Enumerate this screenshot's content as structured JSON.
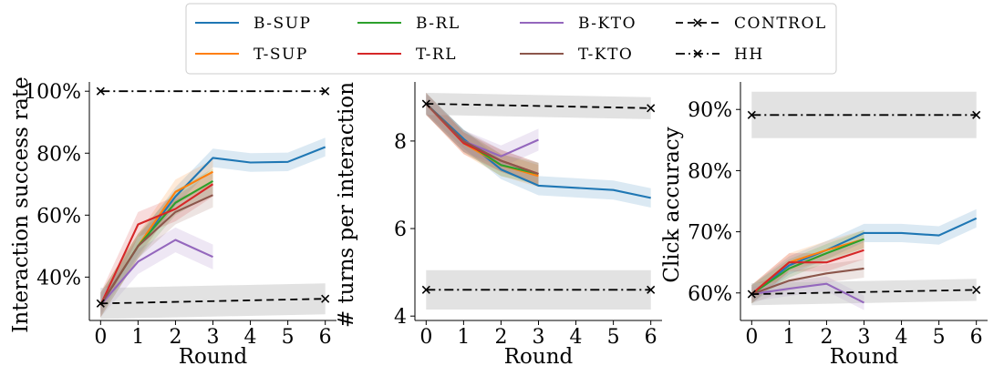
{
  "legend": {
    "placement": "top-center",
    "entries": [
      {
        "label": "B-SUP",
        "color": "#1f77b4",
        "style": "solid"
      },
      {
        "label": "T-SUP",
        "color": "#ff7f0e",
        "style": "solid"
      },
      {
        "label": "B-RL",
        "color": "#2ca02c",
        "style": "solid"
      },
      {
        "label": "T-RL",
        "color": "#d62728",
        "style": "solid"
      },
      {
        "label": "B-KTO",
        "color": "#9467bd",
        "style": "solid"
      },
      {
        "label": "T-KTO",
        "color": "#8c564b",
        "style": "solid"
      },
      {
        "label": "CONTROL",
        "color": "#000000",
        "style": "dashed",
        "marker": "x"
      },
      {
        "label": "HH",
        "color": "#000000",
        "style": "dashdot",
        "marker": "x"
      }
    ]
  },
  "chart_data": [
    {
      "type": "line",
      "xlabel": "Round",
      "ylabel": "Interaction success rate",
      "xlim": [
        -0.3,
        6.3
      ],
      "ylim": [
        26,
        103
      ],
      "xticks": [
        "0",
        "1",
        "2",
        "3",
        "4",
        "5",
        "6"
      ],
      "yticks": [
        {
          "value": 40,
          "label": "40%"
        },
        {
          "value": 60,
          "label": "60%"
        },
        {
          "value": 80,
          "label": "80%"
        },
        {
          "value": 100,
          "label": "100%"
        }
      ],
      "grid": false,
      "series": [
        {
          "name": "B-SUP",
          "color": "#1f77b4",
          "x": [
            0,
            1,
            2,
            3,
            4,
            5,
            6
          ],
          "y": [
            31,
            50,
            66,
            78.5,
            77,
            77.2,
            82
          ],
          "band": 3
        },
        {
          "name": "T-SUP",
          "color": "#ff7f0e",
          "x": [
            0,
            1,
            2,
            3
          ],
          "y": [
            31,
            50,
            67.5,
            74
          ],
          "band": 4
        },
        {
          "name": "B-RL",
          "color": "#2ca02c",
          "x": [
            0,
            1,
            2,
            3
          ],
          "y": [
            31,
            50,
            64,
            71
          ],
          "band": 4
        },
        {
          "name": "T-RL",
          "color": "#d62728",
          "x": [
            0,
            1,
            2,
            3
          ],
          "y": [
            31,
            57,
            62,
            70
          ],
          "band": 4
        },
        {
          "name": "B-KTO",
          "color": "#9467bd",
          "x": [
            0,
            1,
            2,
            3
          ],
          "y": [
            31,
            45,
            52,
            46.5
          ],
          "band": 4
        },
        {
          "name": "T-KTO",
          "color": "#8c564b",
          "x": [
            0,
            1,
            2,
            3
          ],
          "y": [
            31,
            50,
            61,
            66.5
          ],
          "band": 4
        },
        {
          "name": "CONTROL",
          "color": "#000000",
          "dash": "dashed",
          "x": [
            0,
            6
          ],
          "y": [
            31.5,
            33
          ],
          "band": 5,
          "band_color": "#bbbbbb"
        },
        {
          "name": "HH",
          "color": "#000000",
          "dash": "dashdot",
          "x": [
            0,
            6
          ],
          "y": [
            100,
            100
          ],
          "band": 0
        }
      ]
    },
    {
      "type": "line",
      "xlabel": "Round",
      "ylabel": "# turns per interaction",
      "xlim": [
        -0.3,
        6.3
      ],
      "ylim": [
        3.9,
        9.35
      ],
      "xticks": [
        "0",
        "1",
        "2",
        "3",
        "4",
        "5",
        "6"
      ],
      "yticks": [
        {
          "value": 4,
          "label": "4"
        },
        {
          "value": 6,
          "label": "6"
        },
        {
          "value": 8,
          "label": "8"
        }
      ],
      "grid": false,
      "series": [
        {
          "name": "B-SUP",
          "color": "#1f77b4",
          "x": [
            0,
            1,
            2,
            3,
            4,
            5,
            6
          ],
          "y": [
            8.85,
            8.05,
            7.35,
            6.98,
            6.93,
            6.88,
            6.7
          ],
          "band": 0.22
        },
        {
          "name": "T-SUP",
          "color": "#ff7f0e",
          "x": [
            0,
            1,
            2,
            3
          ],
          "y": [
            8.85,
            7.95,
            7.45,
            7.2
          ],
          "band": 0.25
        },
        {
          "name": "B-RL",
          "color": "#2ca02c",
          "x": [
            0,
            1,
            2,
            3
          ],
          "y": [
            8.85,
            8.0,
            7.45,
            7.25
          ],
          "band": 0.25
        },
        {
          "name": "T-RL",
          "color": "#d62728",
          "x": [
            0,
            1,
            2,
            3
          ],
          "y": [
            8.85,
            7.95,
            7.55,
            7.25
          ],
          "band": 0.25
        },
        {
          "name": "B-KTO",
          "color": "#9467bd",
          "x": [
            0,
            1,
            2,
            3
          ],
          "y": [
            8.85,
            8.0,
            7.65,
            8.03
          ],
          "band": 0.25
        },
        {
          "name": "T-KTO",
          "color": "#8c564b",
          "x": [
            0,
            1,
            2,
            3
          ],
          "y": [
            8.85,
            8.0,
            7.55,
            7.25
          ],
          "band": 0.25
        },
        {
          "name": "CONTROL",
          "color": "#000000",
          "dash": "dashed",
          "x": [
            0,
            6
          ],
          "y": [
            8.85,
            8.75
          ],
          "band": 0.25,
          "band_color": "#bbbbbb"
        },
        {
          "name": "HH",
          "color": "#000000",
          "dash": "dashdot",
          "x": [
            0,
            6
          ],
          "y": [
            4.6,
            4.6
          ],
          "band": 0.45,
          "band_color": "#bbbbbb"
        }
      ]
    },
    {
      "type": "line",
      "xlabel": "Round",
      "ylabel": "Click accuracy",
      "xlim": [
        -0.3,
        6.3
      ],
      "ylim": [
        55.5,
        94.5
      ],
      "xticks": [
        "0",
        "1",
        "2",
        "3",
        "4",
        "5",
        "6"
      ],
      "yticks": [
        {
          "value": 60,
          "label": "60%"
        },
        {
          "value": 70,
          "label": "70%"
        },
        {
          "value": 80,
          "label": "80%"
        },
        {
          "value": 90,
          "label": "90%"
        }
      ],
      "grid": false,
      "series": [
        {
          "name": "B-SUP",
          "color": "#1f77b4",
          "x": [
            0,
            1,
            2,
            3,
            4,
            5,
            6
          ],
          "y": [
            59.8,
            64.5,
            67,
            69.8,
            69.8,
            69.4,
            72.2
          ],
          "band": 1.5
        },
        {
          "name": "T-SUP",
          "color": "#ff7f0e",
          "x": [
            0,
            1,
            2,
            3
          ],
          "y": [
            59.8,
            65,
            67,
            68.8
          ],
          "band": 1.5
        },
        {
          "name": "B-RL",
          "color": "#2ca02c",
          "x": [
            0,
            1,
            2,
            3
          ],
          "y": [
            59.8,
            64,
            66.5,
            68.8
          ],
          "band": 1.5
        },
        {
          "name": "T-RL",
          "color": "#d62728",
          "x": [
            0,
            1,
            2,
            3
          ],
          "y": [
            59.8,
            65,
            65,
            67
          ],
          "band": 1.5
        },
        {
          "name": "B-KTO",
          "color": "#9467bd",
          "x": [
            0,
            1,
            2,
            3
          ],
          "y": [
            59.8,
            60.7,
            61.5,
            58.4
          ],
          "band": 1.2
        },
        {
          "name": "T-KTO",
          "color": "#8c564b",
          "x": [
            0,
            1,
            2,
            3
          ],
          "y": [
            59.8,
            62,
            63.2,
            64
          ],
          "band": 1.5
        },
        {
          "name": "CONTROL",
          "color": "#000000",
          "dash": "dashed",
          "x": [
            0,
            6
          ],
          "y": [
            59.8,
            60.5
          ],
          "band": 1.8,
          "band_color": "#bbbbbb"
        },
        {
          "name": "HH",
          "color": "#000000",
          "dash": "dashdot",
          "x": [
            0,
            6
          ],
          "y": [
            89.1,
            89.1
          ],
          "band": 3.8,
          "band_color": "#bbbbbb"
        }
      ]
    }
  ]
}
